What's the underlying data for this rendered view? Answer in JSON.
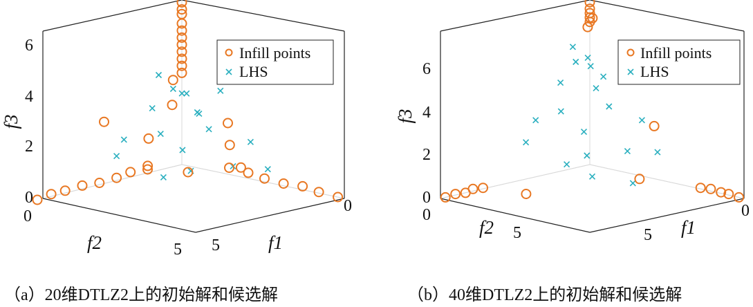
{
  "colors": {
    "infill": "#E87722",
    "lhs": "#2AAFBF",
    "axis": "#222222",
    "grid": "#d9d9d9"
  },
  "chart_data": [
    {
      "type": "scatter3d",
      "caption": "（a）20维DTLZ2上的初始解和候选解",
      "xlabel": "f1",
      "ylabel": "f2",
      "zlabel": "f3",
      "xlim": [
        0,
        5
      ],
      "ylim": [
        0,
        5
      ],
      "zlim": [
        0,
        7
      ],
      "z_ticks": [
        "0",
        "2",
        "4",
        "6"
      ],
      "f2_ticks": [
        "0",
        "5"
      ],
      "f1_ticks": [
        "5",
        "0"
      ],
      "legend": {
        "entries": [
          "Infill points",
          "LHS"
        ],
        "location": "top-right"
      },
      "series": [
        {
          "name": "Infill points",
          "marker": "o",
          "description": "Pareto-front extremes concentrated along the three axes",
          "points": [
            {
              "x": 0,
              "y": 0,
              "z": 6.9
            },
            {
              "x": 0,
              "y": 0,
              "z": 6.6
            },
            {
              "x": 0,
              "y": 0,
              "z": 6.4
            },
            {
              "x": 0,
              "y": 0,
              "z": 6.0
            },
            {
              "x": 0,
              "y": 0,
              "z": 5.7
            },
            {
              "x": 0,
              "y": 0,
              "z": 5.4
            },
            {
              "x": 0,
              "y": 0,
              "z": 5.1
            },
            {
              "x": 0,
              "y": 0,
              "z": 4.8
            },
            {
              "x": 0,
              "y": 0,
              "z": 4.5
            },
            {
              "x": 0,
              "y": 0,
              "z": 4.2
            },
            {
              "x": 0,
              "y": 0,
              "z": 3.9
            },
            {
              "x": 0,
              "y": 5.2,
              "z": 0
            },
            {
              "x": 0,
              "y": 4.7,
              "z": 0.1
            },
            {
              "x": 0,
              "y": 4.2,
              "z": 0.1
            },
            {
              "x": 0.1,
              "y": 3.7,
              "z": 0.2
            },
            {
              "x": 0.2,
              "y": 3.2,
              "z": 0.2
            },
            {
              "x": 0.3,
              "y": 2.7,
              "z": 0.3
            },
            {
              "x": 0.3,
              "y": 2.2,
              "z": 0.4
            },
            {
              "x": 0.4,
              "y": 1.7,
              "z": 0.4
            },
            {
              "x": 4.8,
              "y": 0,
              "z": 0
            },
            {
              "x": 4.3,
              "y": 0.1,
              "z": 0.1
            },
            {
              "x": 3.8,
              "y": 0.1,
              "z": 0.2
            },
            {
              "x": 3.3,
              "y": 0.2,
              "z": 0.2
            },
            {
              "x": 2.8,
              "y": 0.3,
              "z": 0.3
            },
            {
              "x": 2.3,
              "y": 0.3,
              "z": 0.4
            },
            {
              "x": 1.8,
              "y": 0.4,
              "z": 0.5
            },
            {
              "x": 1.2,
              "y": 2.6,
              "z": 2.2
            },
            {
              "x": 2.5,
              "y": 1.2,
              "z": 1.9
            },
            {
              "x": 0.9,
              "y": 1.4,
              "z": 3.2
            },
            {
              "x": 1.6,
              "y": 3.1,
              "z": 1.3
            },
            {
              "x": 3.1,
              "y": 1.5,
              "z": 1.2
            },
            {
              "x": 0.6,
              "y": 3.5,
              "z": 3.0
            },
            {
              "x": 2.1,
              "y": 0.8,
              "z": 2.6
            },
            {
              "x": 0.5,
              "y": 0.9,
              "z": 4.0
            },
            {
              "x": 1.9,
              "y": 2.0,
              "z": 0.8
            }
          ]
        },
        {
          "name": "LHS",
          "marker": "x",
          "description": "Latin hypercube initial samples spread around the front",
          "points": [
            {
              "x": 1.0,
              "y": 1.0,
              "z": 3.6
            },
            {
              "x": 1.5,
              "y": 1.2,
              "z": 3.0
            },
            {
              "x": 0.8,
              "y": 2.0,
              "z": 3.2
            },
            {
              "x": 2.2,
              "y": 1.6,
              "z": 2.6
            },
            {
              "x": 1.4,
              "y": 2.4,
              "z": 2.4
            },
            {
              "x": 2.8,
              "y": 0.8,
              "z": 2.0
            },
            {
              "x": 0.7,
              "y": 2.9,
              "z": 2.1
            },
            {
              "x": 1.9,
              "y": 2.2,
              "z": 1.8
            },
            {
              "x": 2.5,
              "y": 2.6,
              "z": 1.2
            },
            {
              "x": 1.1,
              "y": 1.6,
              "z": 4.0
            },
            {
              "x": 0.4,
              "y": 1.3,
              "z": 4.3
            },
            {
              "x": 1.7,
              "y": 0.6,
              "z": 3.8
            },
            {
              "x": 3.2,
              "y": 1.9,
              "z": 1.4
            },
            {
              "x": 0.9,
              "y": 3.4,
              "z": 1.6
            },
            {
              "x": 2.0,
              "y": 3.0,
              "z": 0.9
            },
            {
              "x": 3.5,
              "y": 1.0,
              "z": 1.1
            },
            {
              "x": 1.3,
              "y": 0.9,
              "z": 2.8
            },
            {
              "x": 0.6,
              "y": 0.7,
              "z": 3.4
            }
          ]
        }
      ]
    },
    {
      "type": "scatter3d",
      "caption": "（b）40维DTLZ2上的初始解和候选解",
      "xlabel": "f1",
      "ylabel": "f2",
      "zlabel": "f3",
      "xlim": [
        0,
        6
      ],
      "ylim": [
        0,
        6
      ],
      "zlim": [
        0,
        7.5
      ],
      "z_ticks": [
        "0",
        "2",
        "4",
        "6"
      ],
      "f2_ticks": [
        "0",
        "5"
      ],
      "f1_ticks": [
        "5",
        "0"
      ],
      "legend": {
        "entries": [
          "Infill points",
          "LHS"
        ],
        "location": "top-right"
      },
      "series": [
        {
          "name": "Infill points",
          "marker": "o",
          "description": "Candidates clustered at the three extreme corners",
          "points": [
            {
              "x": 0,
              "y": 0,
              "z": 7.4
            },
            {
              "x": 0,
              "y": 0,
              "z": 7.1
            },
            {
              "x": 0,
              "y": 0,
              "z": 6.9
            },
            {
              "x": 0,
              "y": 0,
              "z": 6.7
            },
            {
              "x": 0,
              "y": 0,
              "z": 6.5
            },
            {
              "x": 0.3,
              "y": 0.2,
              "z": 6.8
            },
            {
              "x": 0.4,
              "y": 0.5,
              "z": 6.5
            },
            {
              "x": 0,
              "y": 5.8,
              "z": 0
            },
            {
              "x": 0.1,
              "y": 5.5,
              "z": 0.1
            },
            {
              "x": 0.2,
              "y": 5.2,
              "z": 0.1
            },
            {
              "x": 0.2,
              "y": 4.9,
              "z": 0.2
            },
            {
              "x": 0.3,
              "y": 4.6,
              "z": 0.2
            },
            {
              "x": 5.8,
              "y": 0,
              "z": 0
            },
            {
              "x": 5.5,
              "y": 0.1,
              "z": 0.1
            },
            {
              "x": 5.2,
              "y": 0.1,
              "z": 0.1
            },
            {
              "x": 4.9,
              "y": 0.2,
              "z": 0.2
            },
            {
              "x": 4.6,
              "y": 0.3,
              "z": 0.2
            },
            {
              "x": 1.3,
              "y": 3.9,
              "z": 0
            },
            {
              "x": 3.0,
              "y": 1.1,
              "z": 0.4
            },
            {
              "x": 2.7,
              "y": 0.2,
              "z": 2.5
            }
          ]
        },
        {
          "name": "LHS",
          "marker": "x",
          "description": "Latin hypercube samples filling the interior",
          "points": [
            {
              "x": 1.0,
              "y": 1.0,
              "z": 5.0
            },
            {
              "x": 1.5,
              "y": 1.3,
              "z": 4.2
            },
            {
              "x": 0.7,
              "y": 1.9,
              "z": 4.4
            },
            {
              "x": 2.2,
              "y": 1.5,
              "z": 3.6
            },
            {
              "x": 1.3,
              "y": 2.5,
              "z": 3.4
            },
            {
              "x": 2.9,
              "y": 0.9,
              "z": 3.0
            },
            {
              "x": 0.8,
              "y": 3.0,
              "z": 3.0
            },
            {
              "x": 2.0,
              "y": 2.3,
              "z": 2.6
            },
            {
              "x": 2.6,
              "y": 2.8,
              "z": 1.8
            },
            {
              "x": 1.1,
              "y": 1.7,
              "z": 5.4
            },
            {
              "x": 0.5,
              "y": 1.2,
              "z": 5.8
            },
            {
              "x": 1.8,
              "y": 0.6,
              "z": 5.0
            },
            {
              "x": 3.4,
              "y": 2.0,
              "z": 2.0
            },
            {
              "x": 1.0,
              "y": 3.6,
              "z": 2.2
            },
            {
              "x": 2.2,
              "y": 3.2,
              "z": 1.4
            },
            {
              "x": 3.7,
              "y": 1.1,
              "z": 1.8
            },
            {
              "x": 1.4,
              "y": 0.9,
              "z": 4.6
            },
            {
              "x": 0.6,
              "y": 0.7,
              "z": 5.2
            },
            {
              "x": 3.0,
              "y": 3.0,
              "z": 1.0
            },
            {
              "x": 4.0,
              "y": 2.4,
              "z": 0.8
            }
          ]
        }
      ]
    }
  ]
}
